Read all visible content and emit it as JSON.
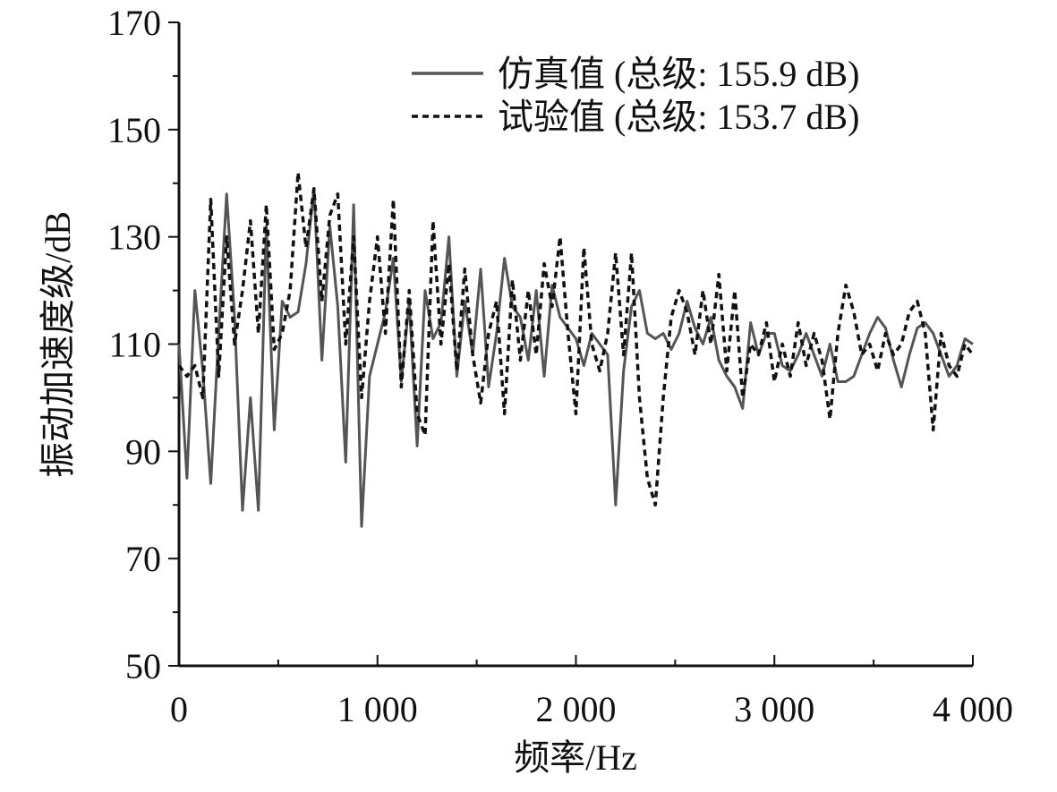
{
  "chart_data": {
    "type": "line",
    "x_label": "频率/Hz",
    "y_label": "振动加速度级/dB",
    "x": [
      0,
      40,
      80,
      120,
      160,
      200,
      240,
      280,
      320,
      360,
      400,
      440,
      480,
      520,
      560,
      600,
      640,
      680,
      720,
      760,
      800,
      840,
      880,
      920,
      960,
      1000,
      1040,
      1080,
      1120,
      1160,
      1200,
      1240,
      1280,
      1320,
      1360,
      1400,
      1440,
      1480,
      1520,
      1560,
      1600,
      1640,
      1680,
      1720,
      1760,
      1800,
      1840,
      1880,
      1920,
      1960,
      2000,
      2040,
      2080,
      2120,
      2160,
      2200,
      2240,
      2280,
      2320,
      2360,
      2400,
      2440,
      2480,
      2520,
      2560,
      2600,
      2640,
      2680,
      2720,
      2760,
      2800,
      2840,
      2880,
      2920,
      2960,
      3000,
      3040,
      3080,
      3120,
      3160,
      3200,
      3240,
      3280,
      3320,
      3360,
      3400,
      3440,
      3480,
      3520,
      3560,
      3600,
      3640,
      3680,
      3720,
      3760,
      3800,
      3840,
      3880,
      3920,
      3960,
      4000
    ],
    "series": [
      {
        "name": "仿真值 (总级: 155.9 dB)",
        "color": "#555555",
        "dash": "solid",
        "values": [
          110,
          85,
          120,
          105,
          84,
          112,
          138,
          115,
          79,
          100,
          79,
          132,
          94,
          118,
          115,
          116,
          125,
          139,
          107,
          132,
          117,
          88,
          136,
          76,
          104,
          110,
          116,
          126,
          103,
          118,
          91,
          120,
          111,
          114,
          130,
          104,
          118,
          108,
          124,
          102,
          112,
          126,
          117,
          115,
          107,
          120,
          104,
          121,
          115,
          113,
          111,
          106,
          112,
          110,
          108,
          80,
          105,
          117,
          120,
          112,
          111,
          112,
          109,
          112,
          118,
          113,
          110,
          115,
          107,
          104,
          102,
          98,
          114,
          108,
          112,
          112,
          106,
          105,
          108,
          112,
          108,
          104,
          110,
          103,
          103,
          104,
          108,
          112,
          115,
          113,
          107,
          102,
          108,
          113,
          114,
          112,
          108,
          104,
          106,
          111,
          110
        ]
      },
      {
        "name": "试验值 (总级: 153.7 dB)",
        "color": "#111111",
        "dash": "dashed",
        "values": [
          106,
          104,
          106,
          100,
          137,
          104,
          130,
          110,
          120,
          133,
          112,
          136,
          109,
          112,
          120,
          142,
          128,
          139,
          118,
          134,
          138,
          110,
          130,
          100,
          118,
          130,
          112,
          137,
          102,
          120,
          97,
          93,
          133,
          110,
          125,
          105,
          124,
          108,
          99,
          112,
          118,
          97,
          122,
          107,
          120,
          108,
          125,
          117,
          130,
          112,
          97,
          128,
          110,
          105,
          112,
          127,
          108,
          127,
          100,
          85,
          80,
          100,
          115,
          120,
          116,
          108,
          120,
          110,
          123,
          105,
          120,
          100,
          110,
          108,
          114,
          103,
          110,
          104,
          114,
          106,
          112,
          107,
          96,
          112,
          121,
          116,
          108,
          110,
          105,
          112,
          108,
          110,
          116,
          118,
          112,
          94,
          112,
          106,
          104,
          110,
          108
        ]
      }
    ],
    "xlim": [
      0,
      4000
    ],
    "xticks": [
      0,
      {
        "value": 1000,
        "label": "1 000"
      },
      {
        "value": 2000,
        "label": "2 000"
      },
      {
        "value": 3000,
        "label": "3 000"
      },
      {
        "value": 4000,
        "label": "4 000"
      }
    ],
    "ylim": [
      50,
      170
    ],
    "yticks": [
      50,
      70,
      90,
      110,
      130,
      150,
      170
    ],
    "legend": "top-right"
  }
}
